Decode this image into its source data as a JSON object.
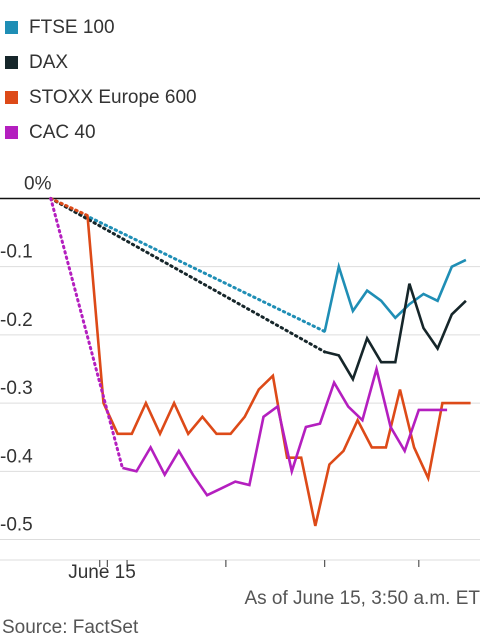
{
  "chart_data": {
    "type": "line",
    "legend": [
      {
        "label": "FTSE 100",
        "color": "#1f8eb5"
      },
      {
        "label": "DAX",
        "color": "#16262a"
      },
      {
        "label": "STOXX Europe 600",
        "color": "#dd4a18"
      },
      {
        "label": "CAC 40",
        "color": "#b41fbf"
      }
    ],
    "y_ticks": [
      {
        "label": "0%",
        "value": 0
      },
      {
        "label": "-0.1",
        "value": -0.1
      },
      {
        "label": "-0.2",
        "value": -0.2
      },
      {
        "label": "-0.3",
        "value": -0.3
      },
      {
        "label": "-0.4",
        "value": -0.4
      },
      {
        "label": "-0.5",
        "value": -0.5
      }
    ],
    "x_label": "June 15",
    "ylim": [
      -0.53,
      0.03
    ],
    "series": [
      {
        "name": "FTSE 100",
        "color": "#1f8eb5",
        "dotted": [
          [
            2.4,
            0
          ],
          [
            31.5,
            -0.195
          ]
        ],
        "solid": [
          [
            31.5,
            -0.195
          ],
          [
            33,
            -0.1
          ],
          [
            34.5,
            -0.165
          ],
          [
            36,
            -0.135
          ],
          [
            37.5,
            -0.15
          ],
          [
            39,
            -0.175
          ],
          [
            40.5,
            -0.155
          ],
          [
            42,
            -0.14
          ],
          [
            43.5,
            -0.15
          ],
          [
            45,
            -0.1
          ],
          [
            46.5,
            -0.09
          ]
        ]
      },
      {
        "name": "DAX",
        "color": "#16262a",
        "dotted": [
          [
            2.4,
            0
          ],
          [
            31.5,
            -0.225
          ]
        ],
        "solid": [
          [
            31.5,
            -0.225
          ],
          [
            33,
            -0.23
          ],
          [
            34.5,
            -0.265
          ],
          [
            36,
            -0.205
          ],
          [
            37.5,
            -0.24
          ],
          [
            39,
            -0.24
          ],
          [
            40.5,
            -0.125
          ],
          [
            42,
            -0.19
          ],
          [
            43.5,
            -0.22
          ],
          [
            45,
            -0.17
          ],
          [
            46.5,
            -0.15
          ]
        ]
      },
      {
        "name": "STOXX Europe 600",
        "color": "#dd4a18",
        "dotted": [
          [
            2.4,
            0
          ],
          [
            6.3,
            -0.025
          ]
        ],
        "solid": [
          [
            6.3,
            -0.025
          ],
          [
            8,
            -0.3
          ],
          [
            9.5,
            -0.345
          ],
          [
            11,
            -0.345
          ],
          [
            12.5,
            -0.3
          ],
          [
            14,
            -0.345
          ],
          [
            15.5,
            -0.3
          ],
          [
            17,
            -0.345
          ],
          [
            18.5,
            -0.32
          ],
          [
            20,
            -0.345
          ],
          [
            21.5,
            -0.345
          ],
          [
            23,
            -0.32
          ],
          [
            24.5,
            -0.28
          ],
          [
            26,
            -0.26
          ],
          [
            27.5,
            -0.38
          ],
          [
            29,
            -0.38
          ],
          [
            30.5,
            -0.48
          ],
          [
            32,
            -0.39
          ],
          [
            33.5,
            -0.37
          ],
          [
            35,
            -0.325
          ],
          [
            36.5,
            -0.365
          ],
          [
            38,
            -0.365
          ],
          [
            39.5,
            -0.28
          ],
          [
            41,
            -0.365
          ],
          [
            42.5,
            -0.41
          ],
          [
            44,
            -0.3
          ],
          [
            45.5,
            -0.3
          ],
          [
            47,
            -0.3
          ]
        ]
      },
      {
        "name": "CAC 40",
        "color": "#b41fbf",
        "dotted": [
          [
            2.4,
            0
          ],
          [
            10,
            -0.395
          ]
        ],
        "solid": [
          [
            10,
            -0.395
          ],
          [
            11.5,
            -0.4
          ],
          [
            13,
            -0.365
          ],
          [
            14.5,
            -0.405
          ],
          [
            16,
            -0.37
          ],
          [
            17.5,
            -0.405
          ],
          [
            19,
            -0.435
          ],
          [
            20.5,
            -0.425
          ],
          [
            22,
            -0.415
          ],
          [
            23.5,
            -0.42
          ],
          [
            25,
            -0.32
          ],
          [
            26.5,
            -0.305
          ],
          [
            28,
            -0.4
          ],
          [
            29.5,
            -0.335
          ],
          [
            31,
            -0.33
          ],
          [
            32.5,
            -0.27
          ],
          [
            34,
            -0.305
          ],
          [
            35.5,
            -0.325
          ],
          [
            37,
            -0.25
          ],
          [
            38.5,
            -0.335
          ],
          [
            40,
            -0.37
          ],
          [
            41.5,
            -0.31
          ],
          [
            43,
            -0.31
          ],
          [
            44.5,
            -0.31
          ]
        ]
      }
    ],
    "x_ticks": [
      7.6,
      8.4,
      10.5,
      21,
      31.5,
      41.5
    ],
    "xlim": [
      -3,
      48
    ],
    "grid": true
  },
  "footer": {
    "as_of": "As of June 15, 3:50 a.m. ET",
    "source": "Source: FactSet"
  }
}
